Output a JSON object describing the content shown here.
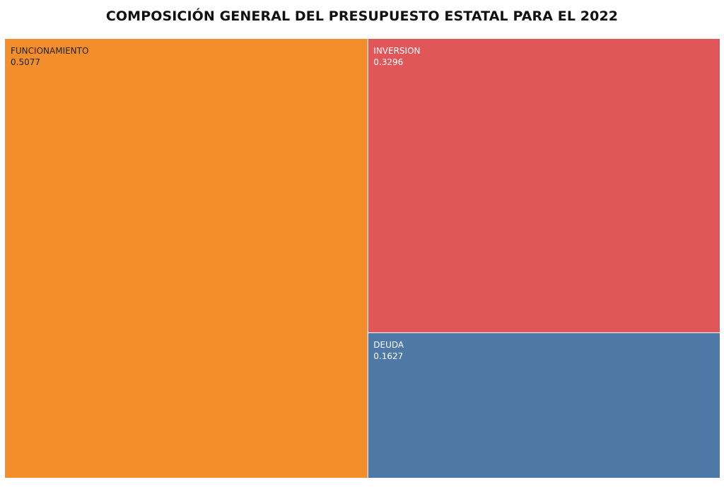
{
  "chart_data": {
    "type": "treemap",
    "title": "COMPOSICIÓN GENERAL DEL PRESUPUESTO ESTATAL PARA EL 2022",
    "items": [
      {
        "name": "FUNCIONAMIENTO",
        "value": 0.5077,
        "value_label": "0.5077",
        "color": "#f28e2b",
        "text_color": "#222222"
      },
      {
        "name": "INVERSION",
        "value": 0.3296,
        "value_label": "0.3296",
        "color": "#e15759",
        "text_color": "#ffffff"
      },
      {
        "name": "DEUDA",
        "value": 0.1627,
        "value_label": "0.1627",
        "color": "#4e79a7",
        "text_color": "#ffffff"
      }
    ],
    "legend": "none",
    "grid": false
  }
}
